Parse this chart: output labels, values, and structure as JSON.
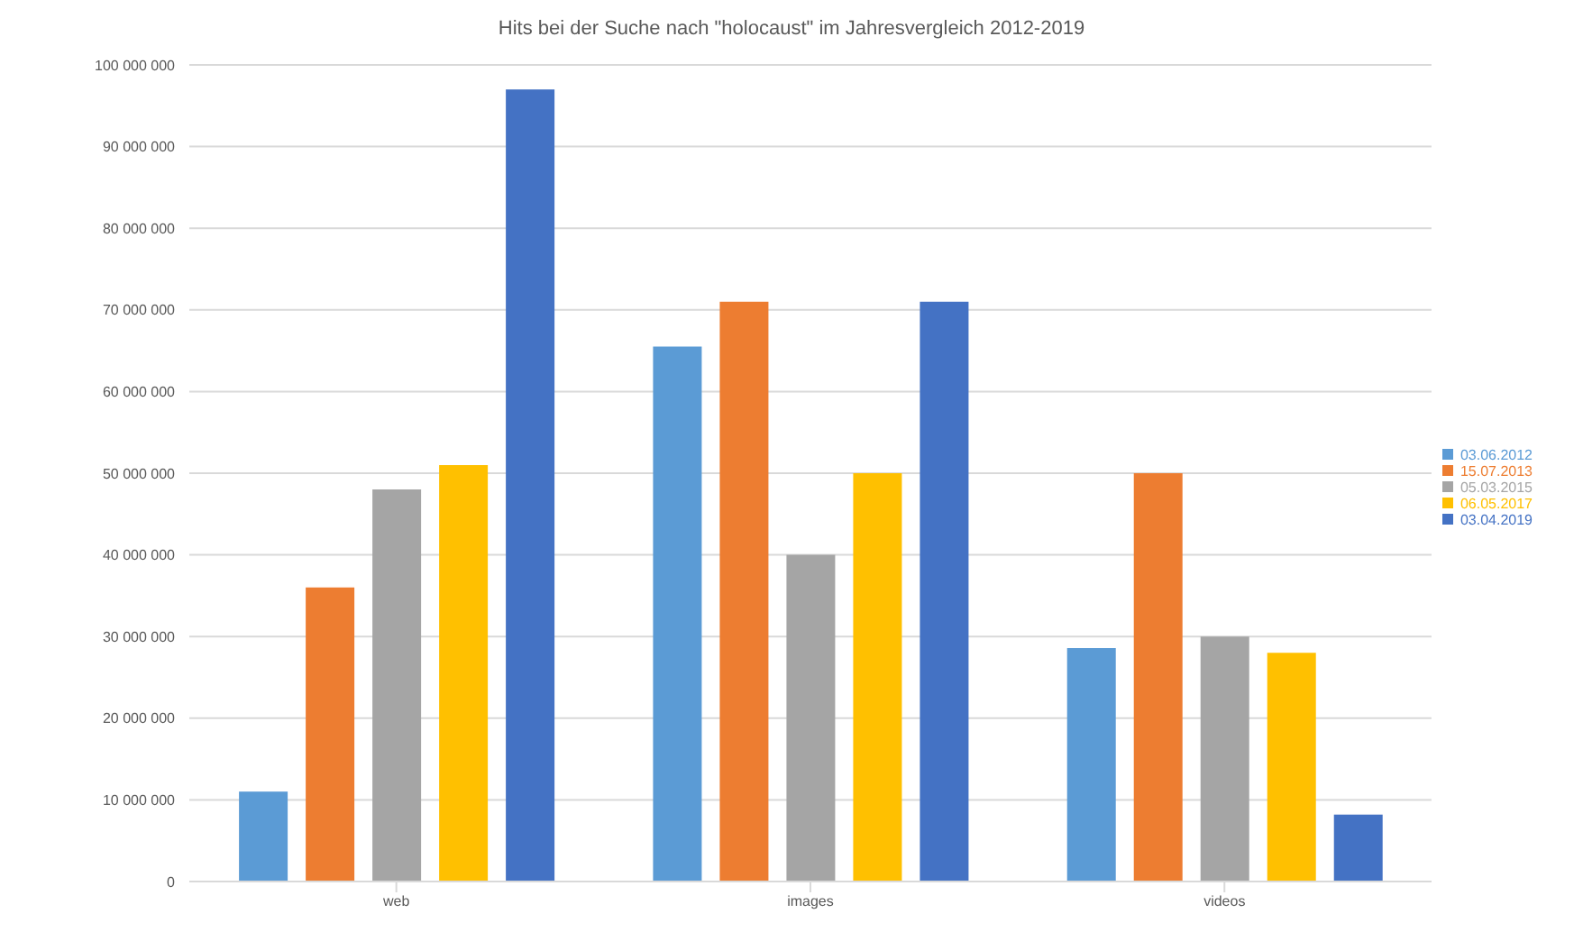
{
  "chart_data": {
    "type": "bar",
    "title": "Hits bei der Suche nach \"holocaust\" im Jahresvergleich 2012-2019",
    "categories": [
      "web",
      "images",
      "videos"
    ],
    "series": [
      {
        "name": "03.06.2012",
        "color": "#5b9bd5",
        "values": [
          11000000,
          65500000,
          28600000
        ]
      },
      {
        "name": "15.07.2013",
        "color": "#ed7d31",
        "values": [
          36000000,
          71000000,
          50000000
        ]
      },
      {
        "name": "05.03.2015",
        "color": "#a5a5a5",
        "values": [
          48000000,
          40000000,
          30000000
        ]
      },
      {
        "name": "06.05.2017",
        "color": "#ffc000",
        "values": [
          51000000,
          50000000,
          28000000
        ]
      },
      {
        "name": "03.04.2019",
        "color": "#4472c4",
        "values": [
          97000000,
          71000000,
          8200000
        ]
      }
    ],
    "ylim": [
      0,
      100000000
    ],
    "yticks": [
      0,
      {
        "value": 10000000,
        "label": "10 000 000"
      },
      {
        "value": 20000000,
        "label": "20 000 000"
      },
      {
        "value": 30000000,
        "label": "30 000 000"
      },
      {
        "value": 40000000,
        "label": "40 000 000"
      },
      {
        "value": 50000000,
        "label": "50 000 000"
      },
      {
        "value": 60000000,
        "label": "60 000 000"
      },
      {
        "value": 70000000,
        "label": "70 000 000"
      },
      {
        "value": 80000000,
        "label": "80 000 000"
      },
      {
        "value": 90000000,
        "label": "90 000 000"
      },
      {
        "value": 100000000,
        "label": "100 000 000"
      }
    ],
    "grid": "y",
    "legend": "right"
  }
}
